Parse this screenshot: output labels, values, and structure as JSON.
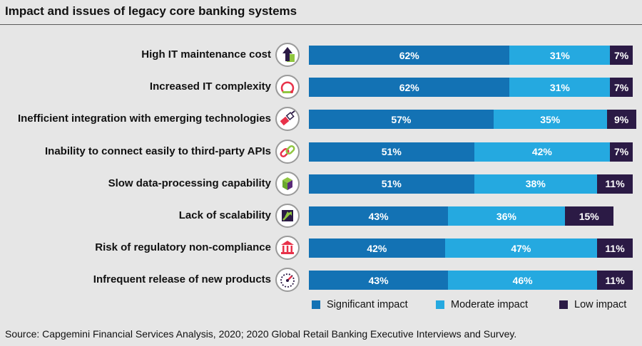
{
  "title": "Impact and issues of legacy core banking systems",
  "source": "Source: Capgemini Financial Services Analysis, 2020; 2020 Global Retail Banking Executive Interviews and Survey.",
  "colors": {
    "significant": "#1372b4",
    "moderate": "#25a9e0",
    "low": "#2b1a45",
    "icon_green": "#90c640",
    "icon_purple": "#5b2b7a",
    "icon_red": "#e8324a"
  },
  "chart_data": {
    "type": "bar",
    "orientation": "horizontal",
    "stacked": true,
    "value_unit": "%",
    "xlim": [
      0,
      100
    ],
    "grid": false,
    "legend_position": "bottom-right",
    "categories": [
      "High IT maintenance cost",
      "Increased IT complexity",
      "Inefficient integration with emerging technologies",
      "Inability to connect easily to third-party APIs",
      "Slow data-processing capability",
      "Lack of scalability",
      "Risk of regulatory non-compliance",
      "Infrequent release of new products"
    ],
    "category_icons": [
      "cost-arrow-up-icon",
      "complexity-loop-icon",
      "plug-integration-icon",
      "chain-link-icon",
      "data-cube-icon",
      "scalability-arrow-icon",
      "bank-building-icon",
      "speedometer-icon"
    ],
    "series": [
      {
        "name": "Significant impact",
        "values": [
          62,
          62,
          57,
          51,
          51,
          43,
          42,
          43
        ]
      },
      {
        "name": "Moderate impact",
        "values": [
          31,
          31,
          35,
          42,
          38,
          36,
          47,
          46
        ]
      },
      {
        "name": "Low impact",
        "values": [
          7,
          7,
          9,
          7,
          11,
          15,
          11,
          11
        ]
      }
    ],
    "data_labels": [
      [
        "62%",
        "62%",
        "57%",
        "51%",
        "51%",
        "43%",
        "42%",
        "43%"
      ],
      [
        "31%",
        "31%",
        "35%",
        "42%",
        "38%",
        "36%",
        "47%",
        "46%"
      ],
      [
        "7%",
        "7%",
        "9%",
        "7%",
        "11%",
        "15%",
        "11%",
        "11%"
      ]
    ]
  }
}
